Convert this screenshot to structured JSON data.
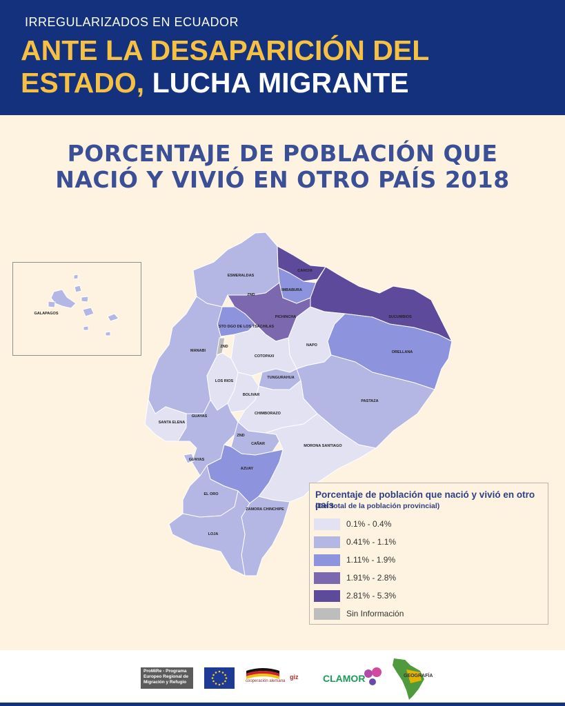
{
  "header": {
    "kicker": "IRREGULARIZADOS EN ECUADOR",
    "headline_yellow_1": "ANTE LA DESAPARICIÓN DEL",
    "headline_yellow_2": "ESTADO,",
    "headline_white": "LUCHA MIGRANTE"
  },
  "map": {
    "title_line1": "PORCENTAJE DE POBLACIÓN QUE",
    "title_line2": "NACIÓ Y VIVIÓ EN OTRO PAÍS 2018",
    "colors": {
      "c1": "#e2e2f3",
      "c2": "#b4b6e3",
      "c3": "#8d93dc",
      "c4": "#7b68ae",
      "c5": "#5e4a9a",
      "nodata": "#bdbdbd",
      "borders": "#ffffff"
    },
    "provinces": [
      {
        "name": "CARCHI",
        "class": "2.81% - 5.3%"
      },
      {
        "name": "ESMERALDAS",
        "class": "0.41% - 1.1%"
      },
      {
        "name": "IMBABURA",
        "class": "1.11% - 1.9%"
      },
      {
        "name": "SUCUMBIOS",
        "class": "2.81% - 5.3%"
      },
      {
        "name": "PICHINCHA",
        "class": "1.91% - 2.8%"
      },
      {
        "name": "STO DGO DE LOS TSÁCHILAS",
        "class": "1.11% - 1.9%"
      },
      {
        "name": "ZND",
        "class": "Sin Información"
      },
      {
        "name": "MANABI",
        "class": "0.41% - 1.1%"
      },
      {
        "name": "NAPO",
        "class": "0.1% - 0.4%"
      },
      {
        "name": "ORELLANA",
        "class": "1.11% - 1.9%"
      },
      {
        "name": "COTOPAXI",
        "class": "0.1% - 0.4%"
      },
      {
        "name": "TUNGURAHUA",
        "class": "0.41% - 1.1%"
      },
      {
        "name": "LOS RIOS",
        "class": "0.1% - 0.4%"
      },
      {
        "name": "BOLIVAR",
        "class": "0.1% - 0.4%"
      },
      {
        "name": "PASTAZA",
        "class": "0.41% - 1.1%"
      },
      {
        "name": "CHIMBORAZO",
        "class": "0.1% - 0.4%"
      },
      {
        "name": "SANTA ELENA",
        "class": "0.1% - 0.4%"
      },
      {
        "name": "GUAYAS",
        "class": "0.41% - 1.1%"
      },
      {
        "name": "CAÑAR",
        "class": "0.41% - 1.1%"
      },
      {
        "name": "MORONA SANTIAGO",
        "class": "0.1% - 0.4%"
      },
      {
        "name": "AZUAY",
        "class": "1.11% - 1.9%"
      },
      {
        "name": "EL ORO",
        "class": "0.41% - 1.1%"
      },
      {
        "name": "ZAMORA CHINCHIPE",
        "class": "0.41% - 1.1%"
      },
      {
        "name": "LOJA",
        "class": "0.41% - 1.1%"
      },
      {
        "name": "GALAPAGOS",
        "class": "0.41% - 1.1%"
      }
    ],
    "labels": {
      "carchi": "CARCHI",
      "esmeraldas": "ESMERALDAS",
      "imbabura": "IMBABURA",
      "sucumbios": "SUCUMBIOS",
      "pichincha": "PICHINCHA",
      "stodgo": "STO DGO DE LOS TSÁCHILAS",
      "znd1": "ZND",
      "znd2": "ZND",
      "znd3": "ZND",
      "manabi": "MANABI",
      "napo": "NAPO",
      "orellana": "ORELLANA",
      "cotopaxi": "COTOPAXI",
      "tungurahua": "TUNGURAHUA",
      "losrios": "LOS RIOS",
      "bolivar": "BOLIVAR",
      "pastaza": "PASTAZA",
      "chimborazo": "CHIMBORAZO",
      "santaelena": "SANTA ELENA",
      "guayas1": "GUAYAS",
      "guayas2": "GUAYAS",
      "canar": "CAÑAR",
      "morona": "MORONA SANTIAGO",
      "azuay": "AZUAY",
      "eloro": "EL ORO",
      "zamora": "ZAMORA CHINCHIPE",
      "loja": "LOJA",
      "galapagos": "GALAPAGOS"
    }
  },
  "legend": {
    "title": "Porcentaje de población que nació y vivió en otro país",
    "subtitle": "(Del total de la población provincial)",
    "items": [
      {
        "label": "0.1% - 0.4%",
        "color": "#e2e2f3"
      },
      {
        "label": "0.41% - 1.1%",
        "color": "#b4b6e3"
      },
      {
        "label": "1.11% - 1.9%",
        "color": "#8d93dc"
      },
      {
        "label": "1.91% -  2.8%",
        "color": "#7b68ae"
      },
      {
        "label": "2.81% - 5.3%",
        "color": "#5e4a9a"
      },
      {
        "label": "Sin Información",
        "color": "#bdbdbd"
      }
    ]
  },
  "footer": {
    "promire": "ProMiRe - Programa Europeo Regional de Migración y Refugio",
    "cooperacion": "cooperación alemana",
    "giz": "giz",
    "clamor": "CLAMOR",
    "geografia": "GEOGRAFÍA"
  }
}
